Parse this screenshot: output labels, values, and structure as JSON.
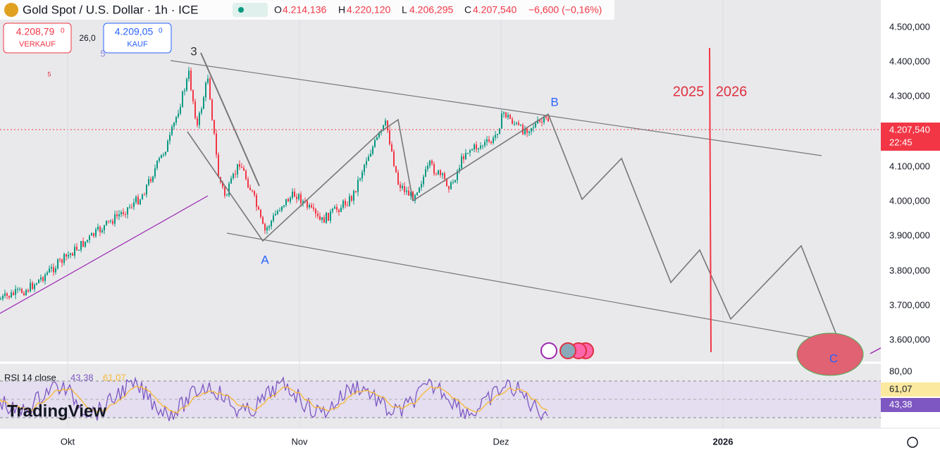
{
  "header": {
    "symbol": "Gold Spot / U.S. Dollar · 1h · ICE",
    "open_label": "O",
    "open": "4.214,136",
    "high_label": "H",
    "high": "4.220,120",
    "low_label": "L",
    "low": "4.206,295",
    "close_label": "C",
    "close": "4.207,540",
    "change": "−6,600 (−0,16%)"
  },
  "trade": {
    "sell_price": "4.208,79",
    "sell_sup": "0",
    "sell_label": "VERKAUF",
    "spread": "26,0",
    "buy_price": "4.209,05",
    "buy_sup": "0",
    "buy_label": "KAUF"
  },
  "price_axis": {
    "labels": [
      "4.500,000",
      "4.400,000",
      "4.300,000",
      "4.100,000",
      "4.000,000",
      "3.900,000",
      "3.800,000",
      "3.700,000",
      "3.600,000"
    ],
    "last_price": "4.207,540",
    "countdown": "22:45"
  },
  "annotations": {
    "wave_3": "3",
    "wave_a": "A",
    "wave_b": "B",
    "wave_c": "C",
    "year_2025": "2025",
    "year_2026": "2026",
    "small_5a": "5",
    "small_5b": "5"
  },
  "rsi": {
    "label": "RSI 14 close",
    "value": "43,38",
    "ma_value": "61,07",
    "axis_label": "80,00",
    "badge_ma": "61,07",
    "badge_rsi": "43,38"
  },
  "time_axis": {
    "labels": [
      "Okt",
      "Nov",
      "Dez",
      "2026"
    ]
  },
  "logo": "TradingView"
}
